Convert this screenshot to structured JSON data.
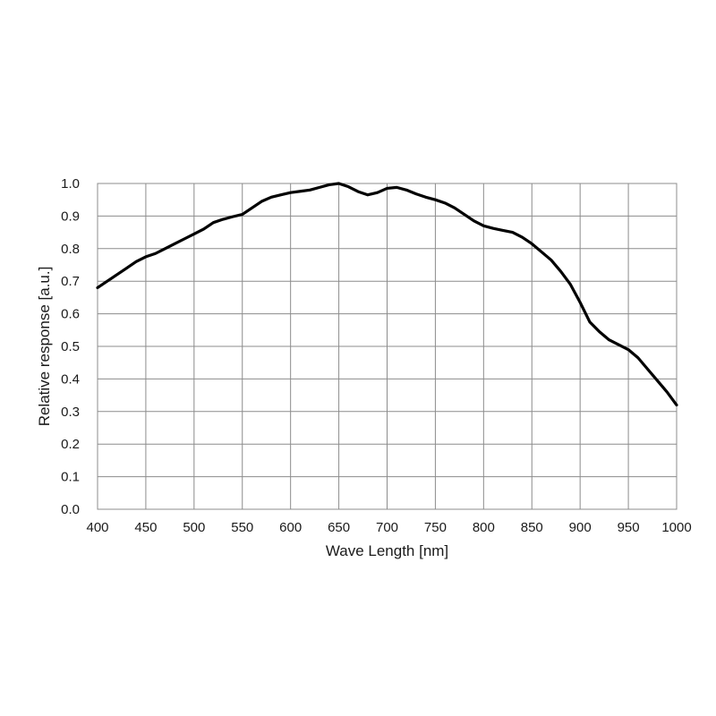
{
  "chart_data": {
    "type": "line",
    "xlabel": "Wave Length [nm]",
    "ylabel": "Relative response [a.u.]",
    "xlim": [
      400,
      1000
    ],
    "ylim": [
      0.0,
      1.0
    ],
    "x_ticks": [
      "400",
      "450",
      "500",
      "550",
      "600",
      "650",
      "700",
      "750",
      "800",
      "850",
      "900",
      "950",
      "1000"
    ],
    "y_ticks": [
      "0.0",
      "0.1",
      "0.2",
      "0.3",
      "0.4",
      "0.5",
      "0.6",
      "0.7",
      "0.8",
      "0.9",
      "1.0"
    ],
    "grid": true,
    "legend": "none",
    "line_color": "#000000",
    "series": [
      {
        "x": [
          400,
          410,
          420,
          430,
          440,
          450,
          460,
          470,
          480,
          490,
          500,
          510,
          520,
          530,
          540,
          550,
          560,
          570,
          580,
          590,
          600,
          610,
          620,
          630,
          640,
          650,
          660,
          670,
          680,
          690,
          700,
          710,
          720,
          730,
          740,
          750,
          760,
          770,
          780,
          790,
          800,
          810,
          820,
          830,
          840,
          850,
          860,
          870,
          880,
          890,
          900,
          910,
          920,
          930,
          940,
          950,
          960,
          970,
          980,
          990,
          1000
        ],
        "y": [
          0.68,
          0.7,
          0.72,
          0.74,
          0.76,
          0.775,
          0.785,
          0.8,
          0.815,
          0.83,
          0.845,
          0.86,
          0.88,
          0.89,
          0.898,
          0.905,
          0.925,
          0.945,
          0.958,
          0.965,
          0.972,
          0.976,
          0.98,
          0.988,
          0.996,
          1.0,
          0.99,
          0.975,
          0.965,
          0.972,
          0.985,
          0.988,
          0.98,
          0.968,
          0.958,
          0.95,
          0.94,
          0.925,
          0.905,
          0.885,
          0.87,
          0.862,
          0.856,
          0.85,
          0.835,
          0.815,
          0.79,
          0.765,
          0.73,
          0.69,
          0.635,
          0.575,
          0.545,
          0.52,
          0.505,
          0.49,
          0.465,
          0.43,
          0.395,
          0.36,
          0.32
        ]
      }
    ]
  }
}
